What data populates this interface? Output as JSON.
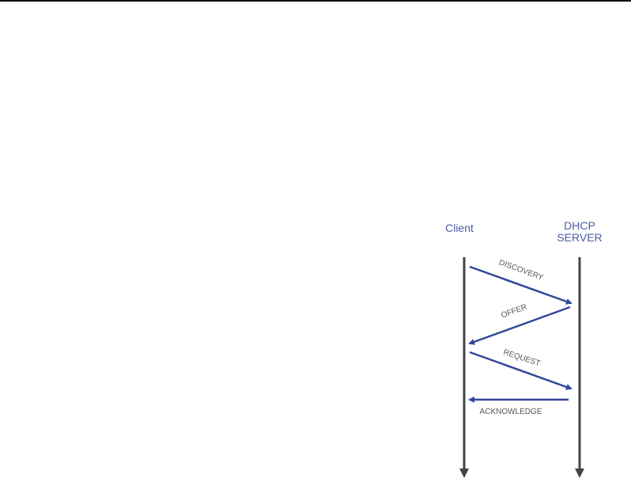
{
  "diagram": {
    "actors": {
      "client": "Client",
      "server_line1": "DHCP",
      "server_line2": "SERVER"
    },
    "messages": [
      {
        "label": "DISCOVERY",
        "from": "Client",
        "to": "DHCP SERVER"
      },
      {
        "label": "OFFER",
        "from": "DHCP SERVER",
        "to": "Client"
      },
      {
        "label": "REQUEST",
        "from": "Client",
        "to": "DHCP SERVER"
      },
      {
        "label": "ACKNOWLEDGE",
        "from": "DHCP SERVER",
        "to": "Client"
      }
    ],
    "colors": {
      "arrow": "#34479a",
      "lifeline": "#444444",
      "actor_text": "#4a5ca3"
    }
  }
}
